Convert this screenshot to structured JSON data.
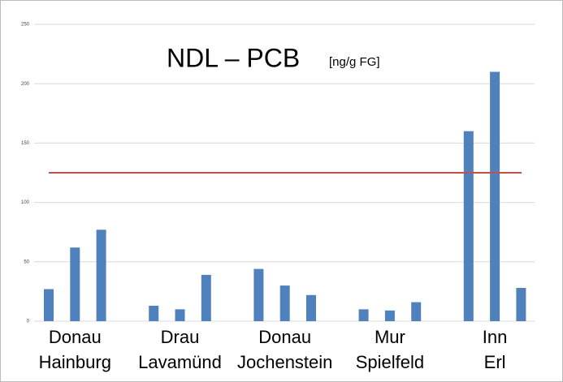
{
  "chart_data": {
    "type": "bar",
    "title": "NDL – PCB",
    "subtitle": "[ng/g FG]",
    "categories": [
      [
        "Donau",
        "Hainburg"
      ],
      [
        "Drau",
        "Lavamünd"
      ],
      [
        "Donau",
        "Jochenstein"
      ],
      [
        "Mur",
        "Spielfeld"
      ],
      [
        "Inn",
        "Erl"
      ]
    ],
    "values": [
      [
        27,
        62,
        77
      ],
      [
        13,
        10,
        39
      ],
      [
        44,
        30,
        22
      ],
      [
        10,
        9,
        16
      ],
      [
        160,
        210,
        28
      ]
    ],
    "color": "#4f81bd",
    "reference_line": {
      "value": 125,
      "color": "#c0504d"
    },
    "ylim": [
      0,
      250
    ],
    "yticks": [
      0,
      50,
      100,
      150,
      200,
      250
    ],
    "grid": true
  }
}
